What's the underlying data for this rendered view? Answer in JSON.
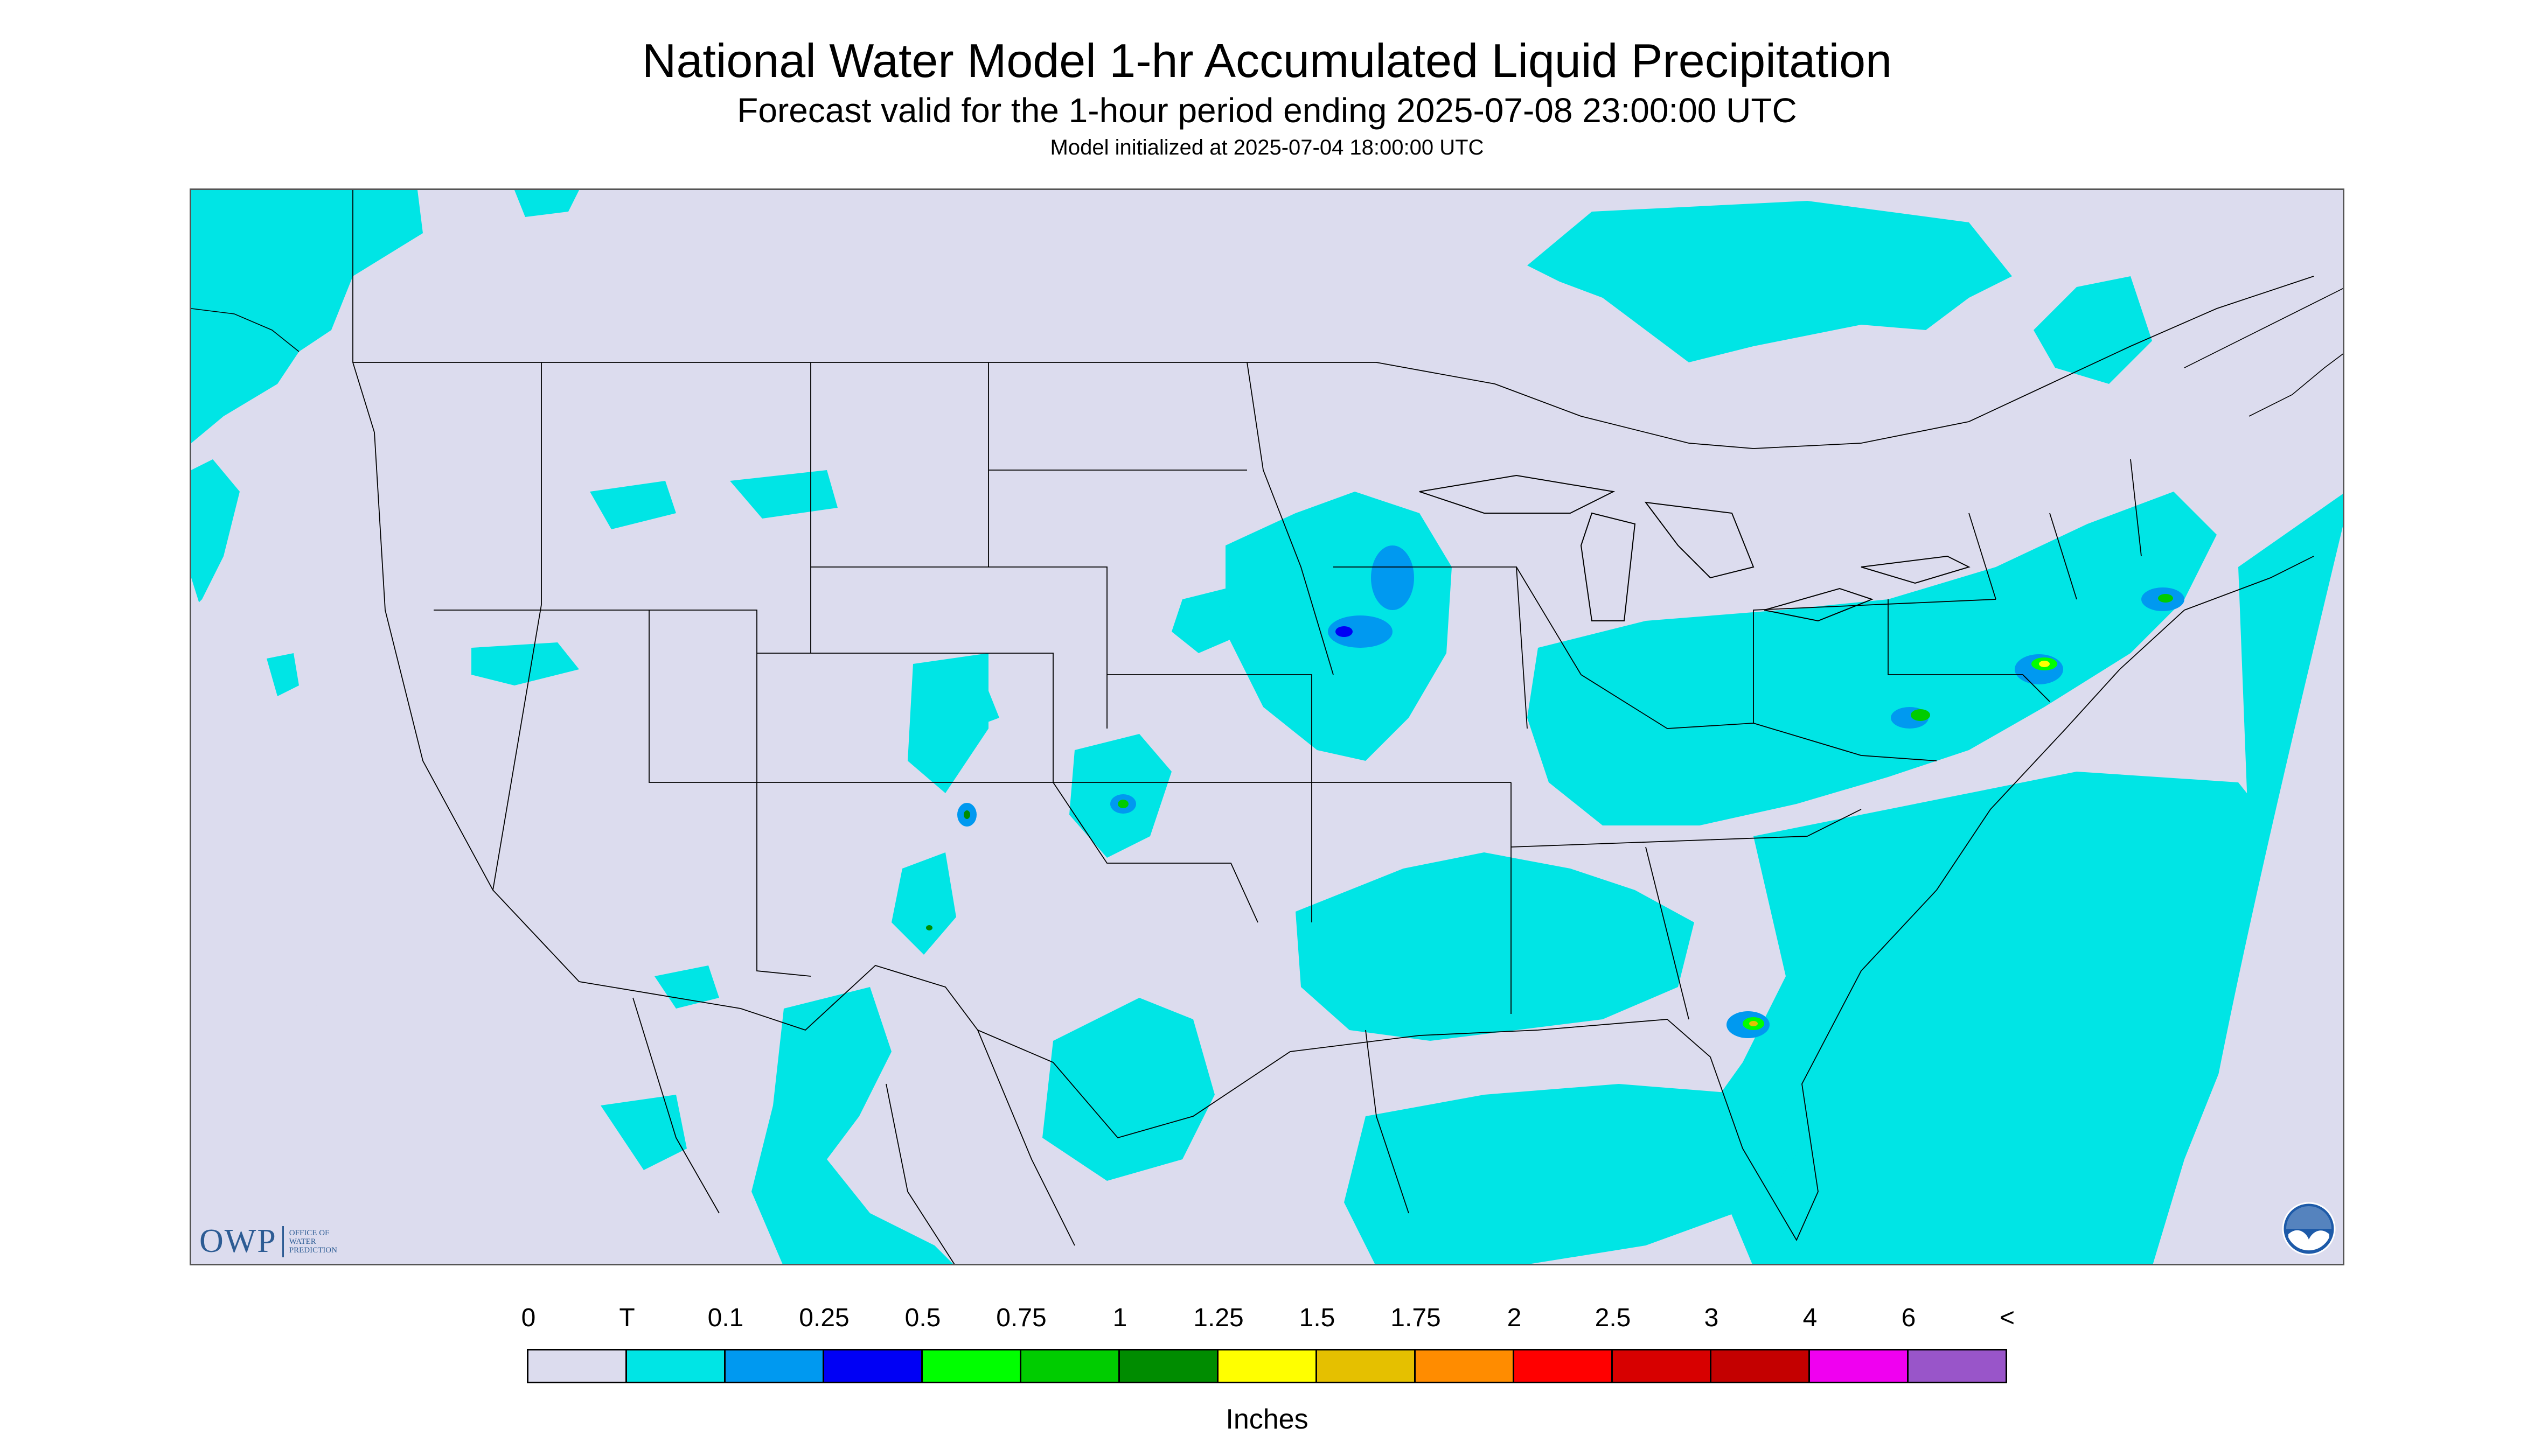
{
  "header": {
    "title": "National Water Model 1-hr Accumulated Liquid Precipitation",
    "subtitle": "Forecast valid for the 1-hour period ending 2025-07-08 23:00:00 UTC",
    "init_text": "Model initialized at 2025-07-04 18:00:00 UTC"
  },
  "map": {
    "background_color": "#dcdcee",
    "land_outline_color": "#000000"
  },
  "legend": {
    "tick_labels": [
      "0",
      "T",
      "0.1",
      "0.25",
      "0.5",
      "0.75",
      "1",
      "1.25",
      "1.5",
      "1.75",
      "2",
      "2.5",
      "3",
      "4",
      "6",
      "<"
    ],
    "colors": [
      "#dcdcee",
      "#00e5e5",
      "#0099f0",
      "#0000f5",
      "#00ff00",
      "#00cc00",
      "#008c00",
      "#ffff00",
      "#e5c000",
      "#ff8c00",
      "#ff0000",
      "#d70000",
      "#c40000",
      "#f000f0",
      "#9955c9"
    ],
    "units_label": "Inches"
  },
  "logos": {
    "owp_text": "OWP",
    "owp_subtext": "OFFICE OF\nWATER\nPREDICTION",
    "noaa_text": "NOAA"
  }
}
